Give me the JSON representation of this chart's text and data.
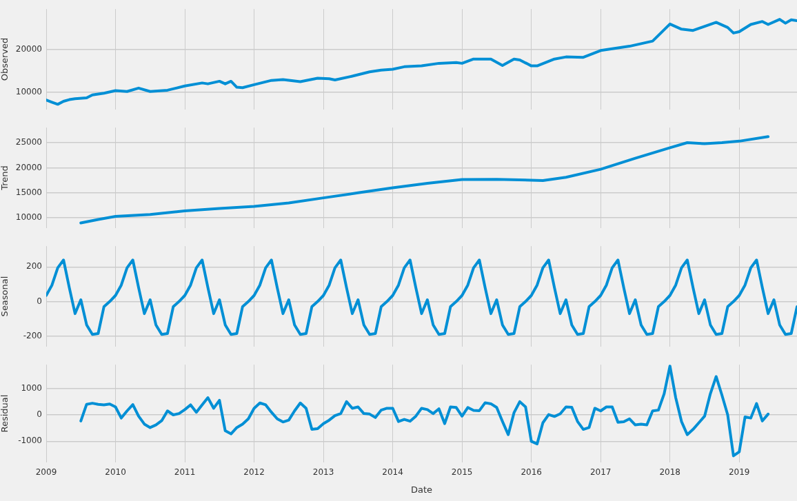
{
  "chart_data": [
    {
      "type": "line",
      "ylabel": "Observed",
      "color": "#008fd5",
      "xlim": [
        "2009-01",
        "2019-11"
      ],
      "xticks": [
        "2009",
        "2010",
        "2011",
        "2012",
        "2013",
        "2014",
        "2015",
        "2016",
        "2017",
        "2018",
        "2019"
      ],
      "ylim": [
        6000,
        29500
      ],
      "yticks": [
        10000,
        20000
      ],
      "grid": true,
      "tick_labels": "y",
      "x": [
        "2009-01",
        "2009-02",
        "2009-03",
        "2009-04",
        "2009-05",
        "2009-06",
        "2009-08",
        "2009-09",
        "2009-11",
        "2010-01",
        "2010-03",
        "2010-05",
        "2010-07",
        "2010-10",
        "2011-01",
        "2011-04",
        "2011-05",
        "2011-07",
        "2011-08",
        "2011-09",
        "2011-10",
        "2011-11",
        "2012-01",
        "2012-04",
        "2012-06",
        "2012-09",
        "2012-12",
        "2013-02",
        "2013-03",
        "2013-06",
        "2013-09",
        "2013-11",
        "2014-01",
        "2014-03",
        "2014-06",
        "2014-09",
        "2014-12",
        "2015-01",
        "2015-03",
        "2015-06",
        "2015-08",
        "2015-10",
        "2015-11",
        "2016-01",
        "2016-02",
        "2016-05",
        "2016-07",
        "2016-10",
        "2017-01",
        "2017-06",
        "2017-10",
        "2018-01",
        "2018-03",
        "2018-05",
        "2018-09",
        "2018-11",
        "2018-12",
        "2019-01",
        "2019-03",
        "2019-05",
        "2019-06",
        "2019-08",
        "2019-09",
        "2019-10",
        "2019-11"
      ],
      "values": [
        8200,
        7700,
        7200,
        7900,
        8300,
        8500,
        8700,
        9400,
        9800,
        10400,
        10200,
        11000,
        10200,
        10500,
        11500,
        12200,
        12000,
        12600,
        12000,
        12600,
        11200,
        11100,
        11800,
        12800,
        13000,
        12500,
        13300,
        13200,
        12900,
        13800,
        14800,
        15200,
        15400,
        16000,
        16200,
        16800,
        17000,
        16800,
        17800,
        17800,
        16300,
        17800,
        17600,
        16200,
        16200,
        17800,
        18300,
        18200,
        19800,
        20800,
        22000,
        26000,
        24800,
        24500,
        26400,
        25200,
        23900,
        24200,
        25900,
        26600,
        25900,
        27100,
        26200,
        27000,
        26800
      ]
    },
    {
      "type": "line",
      "ylabel": "Trend",
      "color": "#008fd5",
      "xlim": [
        "2009-01",
        "2019-11"
      ],
      "xticks": [
        "2009",
        "2010",
        "2011",
        "2012",
        "2013",
        "2014",
        "2015",
        "2016",
        "2017",
        "2018",
        "2019"
      ],
      "ylim": [
        8000,
        28000
      ],
      "yticks": [
        10000,
        15000,
        20000,
        25000
      ],
      "grid": true,
      "tick_labels": "y",
      "x": [
        "2009-07",
        "2009-10",
        "2010-01",
        "2010-07",
        "2011-01",
        "2011-07",
        "2012-01",
        "2012-07",
        "2013-01",
        "2013-07",
        "2014-01",
        "2014-07",
        "2015-01",
        "2015-07",
        "2016-03",
        "2016-07",
        "2017-01",
        "2017-07",
        "2018-01",
        "2018-04",
        "2018-07",
        "2018-10",
        "2019-01",
        "2019-06"
      ],
      "values": [
        9000,
        9700,
        10300,
        10700,
        11400,
        11900,
        12300,
        13000,
        14000,
        15000,
        16000,
        16900,
        17650,
        17700,
        17450,
        18100,
        19700,
        21900,
        24000,
        25000,
        24800,
        25000,
        25300,
        26200
      ]
    },
    {
      "type": "line",
      "ylabel": "Seasonal",
      "color": "#008fd5",
      "xlim": [
        "2009-01",
        "2019-11"
      ],
      "xticks": [
        "2009",
        "2010",
        "2011",
        "2012",
        "2013",
        "2014",
        "2015",
        "2016",
        "2017",
        "2018",
        "2019"
      ],
      "ylim": [
        -260,
        320
      ],
      "yticks": [
        -200,
        0,
        200
      ],
      "grid": true,
      "tick_labels": "y",
      "x": [
        "2009-01",
        "2009-02",
        "2009-03",
        "2009-04",
        "2009-05",
        "2009-06",
        "2009-07",
        "2009-08",
        "2009-09",
        "2009-10",
        "2009-11",
        "2009-12",
        "2010-01",
        "2010-02",
        "2010-03",
        "2010-04",
        "2010-05",
        "2010-06",
        "2010-07",
        "2010-08",
        "2010-09",
        "2010-10",
        "2010-11",
        "2010-12",
        "2011-01",
        "2011-02",
        "2011-03",
        "2011-04",
        "2011-05",
        "2011-06",
        "2011-07",
        "2011-08",
        "2011-09",
        "2011-10",
        "2011-11",
        "2011-12",
        "2012-01",
        "2012-02",
        "2012-03",
        "2012-04",
        "2012-05",
        "2012-06",
        "2012-07",
        "2012-08",
        "2012-09",
        "2012-10",
        "2012-11",
        "2012-12",
        "2013-01",
        "2013-02",
        "2013-03",
        "2013-04",
        "2013-05",
        "2013-06",
        "2013-07",
        "2013-08",
        "2013-09",
        "2013-10",
        "2013-11",
        "2013-12",
        "2014-01",
        "2014-02",
        "2014-03",
        "2014-04",
        "2014-05",
        "2014-06",
        "2014-07",
        "2014-08",
        "2014-09",
        "2014-10",
        "2014-11",
        "2014-12",
        "2015-01",
        "2015-02",
        "2015-03",
        "2015-04",
        "2015-05",
        "2015-06",
        "2015-07",
        "2015-08",
        "2015-09",
        "2015-10",
        "2015-11",
        "2015-12",
        "2016-01",
        "2016-02",
        "2016-03",
        "2016-04",
        "2016-05",
        "2016-06",
        "2016-07",
        "2016-08",
        "2016-09",
        "2016-10",
        "2016-11",
        "2016-12",
        "2017-01",
        "2017-02",
        "2017-03",
        "2017-04",
        "2017-05",
        "2017-06",
        "2017-07",
        "2017-08",
        "2017-09",
        "2017-10",
        "2017-11",
        "2017-12",
        "2018-01",
        "2018-02",
        "2018-03",
        "2018-04",
        "2018-05",
        "2018-06",
        "2018-07",
        "2018-08",
        "2018-09",
        "2018-10",
        "2018-11",
        "2018-12",
        "2019-01",
        "2019-02",
        "2019-03",
        "2019-04",
        "2019-05",
        "2019-06",
        "2019-07",
        "2019-08",
        "2019-09",
        "2019-10",
        "2019-11"
      ],
      "values": [
        35,
        95,
        195,
        240,
        80,
        -70,
        10,
        -135,
        -190,
        -185,
        -30,
        0,
        35,
        95,
        195,
        240,
        80,
        -70,
        10,
        -135,
        -190,
        -185,
        -30,
        0,
        35,
        95,
        195,
        240,
        80,
        -70,
        10,
        -135,
        -190,
        -185,
        -30,
        0,
        35,
        95,
        195,
        240,
        80,
        -70,
        10,
        -135,
        -190,
        -185,
        -30,
        0,
        35,
        95,
        195,
        240,
        80,
        -70,
        10,
        -135,
        -190,
        -185,
        -30,
        0,
        35,
        95,
        195,
        240,
        80,
        -70,
        10,
        -135,
        -190,
        -185,
        -30,
        0,
        35,
        95,
        195,
        240,
        80,
        -70,
        10,
        -135,
        -190,
        -185,
        -30,
        0,
        35,
        95,
        195,
        240,
        80,
        -70,
        10,
        -135,
        -190,
        -185,
        -30,
        0,
        35,
        95,
        195,
        240,
        80,
        -70,
        10,
        -135,
        -190,
        -185,
        -30,
        0,
        35,
        95,
        195,
        240,
        80,
        -70,
        10,
        -135,
        -190,
        -185,
        -30,
        0,
        35,
        95,
        195,
        240,
        80,
        -70,
        10,
        -135,
        -190,
        -185,
        -30
      ]
    },
    {
      "type": "line",
      "ylabel": "Residual",
      "xlabel": "Date",
      "color": "#008fd5",
      "xlim": [
        "2009-01",
        "2019-11"
      ],
      "xticks": [
        "2009",
        "2010",
        "2011",
        "2012",
        "2013",
        "2014",
        "2015",
        "2016",
        "2017",
        "2018",
        "2019"
      ],
      "ylim": [
        -1800,
        1900
      ],
      "yticks": [
        -1000,
        0,
        1000
      ],
      "grid": true,
      "x": [
        "2009-07",
        "2009-08",
        "2009-09",
        "2009-10",
        "2009-11",
        "2009-12",
        "2010-01",
        "2010-02",
        "2010-03",
        "2010-04",
        "2010-05",
        "2010-06",
        "2010-07",
        "2010-08",
        "2010-09",
        "2010-10",
        "2010-11",
        "2010-12",
        "2011-01",
        "2011-02",
        "2011-03",
        "2011-04",
        "2011-05",
        "2011-06",
        "2011-07",
        "2011-08",
        "2011-09",
        "2011-10",
        "2011-11",
        "2011-12",
        "2012-01",
        "2012-02",
        "2012-03",
        "2012-04",
        "2012-05",
        "2012-06",
        "2012-07",
        "2012-08",
        "2012-09",
        "2012-10",
        "2012-11",
        "2012-12",
        "2013-01",
        "2013-02",
        "2013-03",
        "2013-04",
        "2013-05",
        "2013-06",
        "2013-07",
        "2013-08",
        "2013-09",
        "2013-10",
        "2013-11",
        "2013-12",
        "2014-01",
        "2014-02",
        "2014-03",
        "2014-04",
        "2014-05",
        "2014-06",
        "2014-07",
        "2014-08",
        "2014-09",
        "2014-10",
        "2014-11",
        "2014-12",
        "2015-01",
        "2015-02",
        "2015-03",
        "2015-04",
        "2015-05",
        "2015-06",
        "2015-07",
        "2015-08",
        "2015-09",
        "2015-10",
        "2015-11",
        "2015-12",
        "2016-01",
        "2016-02",
        "2016-03",
        "2016-04",
        "2016-05",
        "2016-06",
        "2016-07",
        "2016-08",
        "2016-09",
        "2016-10",
        "2016-11",
        "2016-12",
        "2017-01",
        "2017-02",
        "2017-03",
        "2017-04",
        "2017-05",
        "2017-06",
        "2017-07",
        "2017-08",
        "2017-09",
        "2017-10",
        "2017-11",
        "2017-12",
        "2018-01",
        "2018-02",
        "2018-03",
        "2018-04",
        "2018-05",
        "2018-06",
        "2018-07",
        "2018-08",
        "2018-09",
        "2018-10",
        "2018-11",
        "2018-12",
        "2019-01",
        "2019-02",
        "2019-03",
        "2019-04",
        "2019-05",
        "2019-06"
      ],
      "values": [
        -230,
        400,
        440,
        400,
        380,
        410,
        300,
        -120,
        150,
        390,
        -50,
        -350,
        -480,
        -380,
        -220,
        150,
        0,
        50,
        200,
        380,
        100,
        380,
        650,
        250,
        550,
        -600,
        -720,
        -480,
        -350,
        -150,
        250,
        450,
        380,
        100,
        -150,
        -270,
        -200,
        150,
        450,
        250,
        -550,
        -520,
        -330,
        -200,
        -30,
        50,
        500,
        250,
        300,
        50,
        30,
        -100,
        180,
        250,
        250,
        -250,
        -170,
        -240,
        -50,
        250,
        200,
        50,
        230,
        -330,
        300,
        280,
        -50,
        280,
        170,
        160,
        460,
        420,
        280,
        -250,
        -750,
        80,
        500,
        300,
        -1000,
        -1100,
        -300,
        10,
        -60,
        40,
        300,
        290,
        -250,
        -550,
        -480,
        250,
        150,
        300,
        300,
        -280,
        -260,
        -150,
        -380,
        -350,
        -380,
        150,
        180,
        800,
        1850,
        650,
        -250,
        -750,
        -550,
        -300,
        -50,
        800,
        1450,
        750,
        0,
        -1550,
        -1400,
        -80,
        -120,
        430,
        -230,
        30
      ]
    }
  ]
}
